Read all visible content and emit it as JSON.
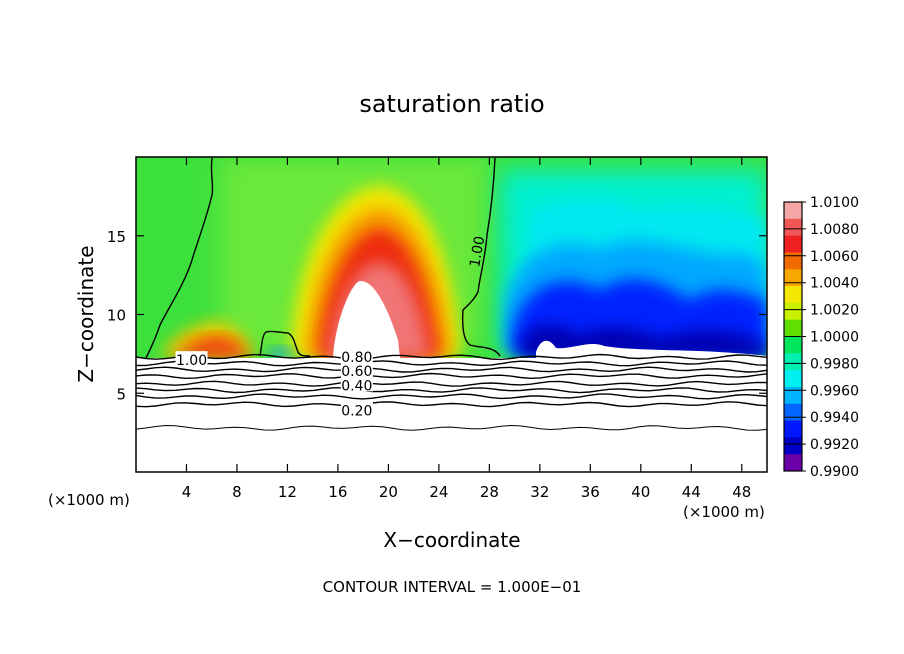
{
  "chart_data": {
    "type": "heatmap",
    "title": "saturation ratio",
    "xlabel": "X−coordinate",
    "ylabel": "Z−coordinate",
    "x_unit_left": "(×1000 m)",
    "x_unit_right": "(×1000 m)",
    "footer": "CONTOUR INTERVAL = 1.000E−01",
    "xlim": [
      0,
      50
    ],
    "ylim": [
      0,
      20
    ],
    "x_ticks": [
      4,
      8,
      12,
      16,
      20,
      24,
      28,
      32,
      36,
      40,
      44,
      48
    ],
    "y_ticks": [
      5,
      10,
      15
    ],
    "colorbar": {
      "min": 0.99,
      "max": 1.01,
      "labels": [
        "1.0100",
        "1.0080",
        "1.0060",
        "1.0040",
        "1.0020",
        "1.0000",
        "0.9980",
        "0.9960",
        "0.9940",
        "0.9920",
        "0.9900"
      ],
      "colors": [
        "#f4a6a6",
        "#f05858",
        "#ee2020",
        "#f26b00",
        "#f7a800",
        "#f2e800",
        "#c9f000",
        "#5fe000",
        "#00e65a",
        "#00f0b0",
        "#00f0f0",
        "#00b4ff",
        "#0066ff",
        "#0018ff",
        "#0000c8",
        "#6a00a8"
      ]
    },
    "contour_labels": [
      {
        "text": "1.00",
        "x": 4.4,
        "z": 7.1
      },
      {
        "text": "1.00",
        "x": 27.0,
        "z": 14.0
      },
      {
        "text": "0.80",
        "x": 17.5,
        "z": 7.3
      },
      {
        "text": "0.60",
        "x": 17.5,
        "z": 6.4
      },
      {
        "text": "0.40",
        "x": 17.5,
        "z": 5.5
      },
      {
        "text": "0.20",
        "x": 17.5,
        "z": 3.9
      }
    ],
    "contour_levels": [
      {
        "level": "1.00",
        "z": 7.3
      },
      {
        "level": "0.90",
        "z": 6.9
      },
      {
        "level": "0.80",
        "z": 6.5
      },
      {
        "level": "0.70",
        "z": 6.1
      },
      {
        "level": "0.60",
        "z": 5.6
      },
      {
        "level": "0.50",
        "z": 5.2
      },
      {
        "level": "0.40",
        "z": 4.8
      },
      {
        "level": "0.20",
        "z": 4.3
      },
      {
        "level": "0.10",
        "z": 2.8
      }
    ]
  }
}
